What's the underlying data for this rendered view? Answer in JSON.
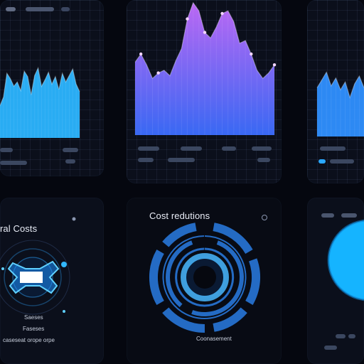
{
  "dashboard": {
    "top_left_card": {
      "chart": {
        "type": "area",
        "color": "#2bb5ff",
        "values": [
          30,
          38,
          60,
          55,
          48,
          52,
          44,
          62,
          57,
          40,
          58,
          65,
          48,
          54,
          61,
          50,
          57,
          45,
          60,
          52,
          58,
          64,
          50,
          43
        ]
      }
    },
    "top_center_card": {
      "chart": {
        "type": "area",
        "gradient_top": "#c46cff",
        "gradient_bottom": "#3b6dff",
        "values": [
          54,
          60,
          52,
          42,
          46,
          48,
          44,
          55,
          64,
          86,
          98,
          92,
          76,
          72,
          80,
          90,
          92,
          84,
          68,
          70,
          60,
          48,
          42,
          46,
          52
        ]
      }
    },
    "top_right_card": {
      "chart": {
        "type": "area",
        "color": "#2f90ff",
        "values": [
          50,
          58,
          66,
          52,
          60,
          48,
          56,
          40,
          54,
          62,
          50
        ]
      }
    },
    "bottom_left_card": {
      "title": "ral Costs",
      "labels": [
        "Saeses",
        "Faseses",
        "caseseat orope orpe"
      ]
    },
    "bottom_center_card": {
      "title": "Cost redutions",
      "label": "Coonasement"
    },
    "bottom_right_card": {
      "accent": "#18b6ff"
    }
  }
}
